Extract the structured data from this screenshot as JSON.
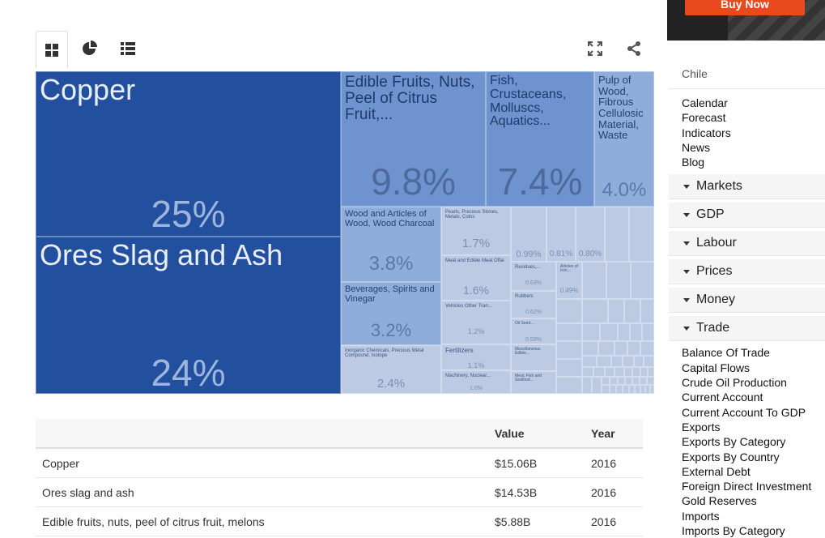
{
  "toolbar": {
    "icons": [
      "treemap-icon",
      "pie-chart-icon",
      "list-icon",
      "fullscreen-icon",
      "share-icon"
    ]
  },
  "chart_data": {
    "type": "treemap",
    "labels": [
      {
        "name": "Copper",
        "value": "25%"
      },
      {
        "name": "Ores Slag and Ash",
        "value": "24%"
      },
      {
        "name": "Edible Fruits, Nuts, Peel of Citrus Fruit,...",
        "value": "9.8%"
      },
      {
        "name": "Fish, Crustaceans, Molluscs, Aquatics...",
        "value": "7.4%"
      },
      {
        "name": "Pulp of Wood, Fibrous Cellulosic Material, Waste",
        "value": "4.0%"
      },
      {
        "name": "Wood and Articles of Wood, Wood Charcoal",
        "value": "3.8%"
      },
      {
        "name": "Beverages, Spirits and Vinegar",
        "value": "3.2%"
      },
      {
        "name": "Inorganic Chemicals, Precious Metal Compound, Isotope",
        "value": "2.4%"
      },
      {
        "name": "Pearls, Precious Stones, Metals, Coins",
        "value": "1.7%"
      },
      {
        "name": "Meat and Edible Meat Offal",
        "value": "1.6%"
      },
      {
        "name": "Vehicles Other Tran...",
        "value": "1.2%"
      },
      {
        "name": "Fertilizers",
        "value": "1.1%"
      },
      {
        "name": "Machinery, Nuclear...",
        "value": "1.0%"
      },
      {
        "name": "",
        "value": "0.99%"
      },
      {
        "name": "",
        "value": "0.81%"
      },
      {
        "name": "",
        "value": "0.80%"
      },
      {
        "name": "Residues,...",
        "value": "0.63%"
      },
      {
        "name": "Articles of Iron...",
        "value": "0.49%"
      },
      {
        "name": "Rubbers",
        "value": "0.62%"
      },
      {
        "name": "Oil Seed,...",
        "value": "0.59%"
      },
      {
        "name": "Miscellaneous Edible...",
        "value": ""
      },
      {
        "name": "Meat, Fish and Seafood...",
        "value": ""
      }
    ]
  },
  "table": {
    "headers": [
      "",
      "Value",
      "Year"
    ],
    "rows": [
      [
        "Copper",
        "$15.06B",
        "2016"
      ],
      [
        "Ores slag and ash",
        "$14.53B",
        "2016"
      ],
      [
        "Edible fruits, nuts, peel of citrus fruit, melons",
        "$5.88B",
        "2016"
      ]
    ]
  },
  "ad": {
    "button": "Buy Now"
  },
  "sidebar": {
    "country": "Chile",
    "links": [
      "Calendar",
      "Forecast",
      "Indicators",
      "News",
      "Blog"
    ],
    "sections": [
      "Markets",
      "GDP",
      "Labour",
      "Prices",
      "Money",
      "Trade"
    ],
    "trade_links": [
      "Balance Of Trade",
      "Capital Flows",
      "Crude Oil Production",
      "Current Account",
      "Current Account To GDP",
      "Exports",
      "Exports By Category",
      "Exports By Country",
      "External Debt",
      "Foreign Direct Investment",
      "Gold Reserves",
      "Imports",
      "Imports By Category"
    ]
  },
  "colors": {
    "primary": "#22509f",
    "mid": "#6e93cf",
    "light": "#8fadda",
    "pale": "#bccbe3",
    "orange": "#e8491d"
  }
}
